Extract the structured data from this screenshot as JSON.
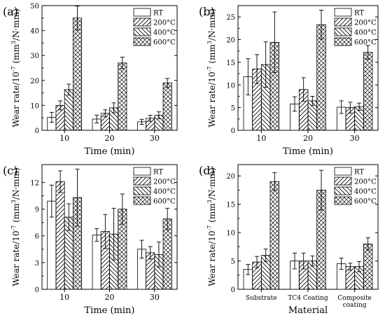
{
  "legend_labels": [
    "RT",
    "200°C",
    "400°C",
    "600°C"
  ],
  "chart_data": [
    {
      "type": "bar",
      "panel_label": "(a)",
      "xlabel": "Time (min)",
      "ylabel": "Wear rate/10^-7 (mm^3/N·mm)",
      "categories": [
        "10",
        "20",
        "30"
      ],
      "ylim": [
        0,
        50
      ],
      "yticks": [
        0,
        10,
        20,
        30,
        40,
        50
      ],
      "legend_position": "top-right",
      "series": [
        {
          "name": "RT",
          "values": [
            5.2,
            4.5,
            3.4
          ],
          "errors": [
            2.0,
            1.6,
            1.0
          ]
        },
        {
          "name": "200°C",
          "values": [
            10.0,
            6.8,
            4.8
          ],
          "errors": [
            1.8,
            1.4,
            1.2
          ]
        },
        {
          "name": "400°C",
          "values": [
            16.3,
            9.0,
            6.0
          ],
          "errors": [
            2.2,
            2.0,
            1.4
          ]
        },
        {
          "name": "600°C",
          "values": [
            45.0,
            27.0,
            19.0
          ],
          "errors": [
            4.8,
            2.3,
            1.8
          ]
        }
      ]
    },
    {
      "type": "bar",
      "panel_label": "(b)",
      "xlabel": "Time (min)",
      "ylabel": "Wear rate/10^-7 (mm^3/N·mm)",
      "categories": [
        "10",
        "20",
        "30"
      ],
      "ylim": [
        0,
        27.5
      ],
      "yticks": [
        0,
        5,
        10,
        15,
        20,
        25
      ],
      "legend_position": "top-right",
      "series": [
        {
          "name": "RT",
          "values": [
            11.8,
            5.8,
            5.1
          ],
          "errors": [
            4.0,
            1.6,
            1.4
          ]
        },
        {
          "name": "200°C",
          "values": [
            13.5,
            9.0,
            5.0
          ],
          "errors": [
            3.2,
            2.6,
            1.2
          ]
        },
        {
          "name": "400°C",
          "values": [
            14.5,
            6.5,
            5.2
          ],
          "errors": [
            5.0,
            1.0,
            0.8
          ]
        },
        {
          "name": "600°C",
          "values": [
            19.4,
            23.3,
            17.2
          ],
          "errors": [
            6.7,
            3.2,
            1.5
          ]
        }
      ]
    },
    {
      "type": "bar",
      "panel_label": "(c)",
      "xlabel": "Time (min)",
      "ylabel": "Wear rate/10^-7 (mm^3/N·mm)",
      "categories": [
        "10",
        "20",
        "30"
      ],
      "ylim": [
        0,
        14
      ],
      "yticks": [
        0,
        3,
        6,
        9,
        12
      ],
      "legend_position": "top-right",
      "series": [
        {
          "name": "RT",
          "values": [
            9.9,
            6.1,
            4.5
          ],
          "errors": [
            1.8,
            0.7,
            1.0
          ]
        },
        {
          "name": "200°C",
          "values": [
            12.1,
            6.5,
            4.1
          ],
          "errors": [
            1.2,
            1.9,
            0.7
          ]
        },
        {
          "name": "400°C",
          "values": [
            8.1,
            6.2,
            3.9
          ],
          "errors": [
            1.5,
            2.9,
            1.4
          ]
        },
        {
          "name": "600°C",
          "values": [
            10.3,
            9.0,
            7.9
          ],
          "errors": [
            3.2,
            1.7,
            1.2
          ]
        }
      ]
    },
    {
      "type": "bar",
      "panel_label": "(d)",
      "xlabel": "Material",
      "ylabel": "Wear rate/10^-7 (mm^3/N·mm)",
      "categories": [
        "Substrate",
        "TC4 Coating",
        "Composite coating"
      ],
      "ylim": [
        0,
        22
      ],
      "yticks": [
        0,
        5,
        10,
        15,
        20
      ],
      "legend_position": "top-right",
      "series": [
        {
          "name": "RT",
          "values": [
            3.5,
            5.0,
            4.5
          ],
          "errors": [
            0.9,
            1.4,
            1.0
          ]
        },
        {
          "name": "200°C",
          "values": [
            4.8,
            5.0,
            4.0
          ],
          "errors": [
            1.0,
            1.4,
            0.6
          ]
        },
        {
          "name": "400°C",
          "values": [
            6.0,
            5.0,
            4.0
          ],
          "errors": [
            1.1,
            0.9,
            0.9
          ]
        },
        {
          "name": "600°C",
          "values": [
            19.0,
            17.5,
            8.0
          ],
          "errors": [
            1.6,
            3.5,
            1.1
          ]
        }
      ]
    }
  ]
}
